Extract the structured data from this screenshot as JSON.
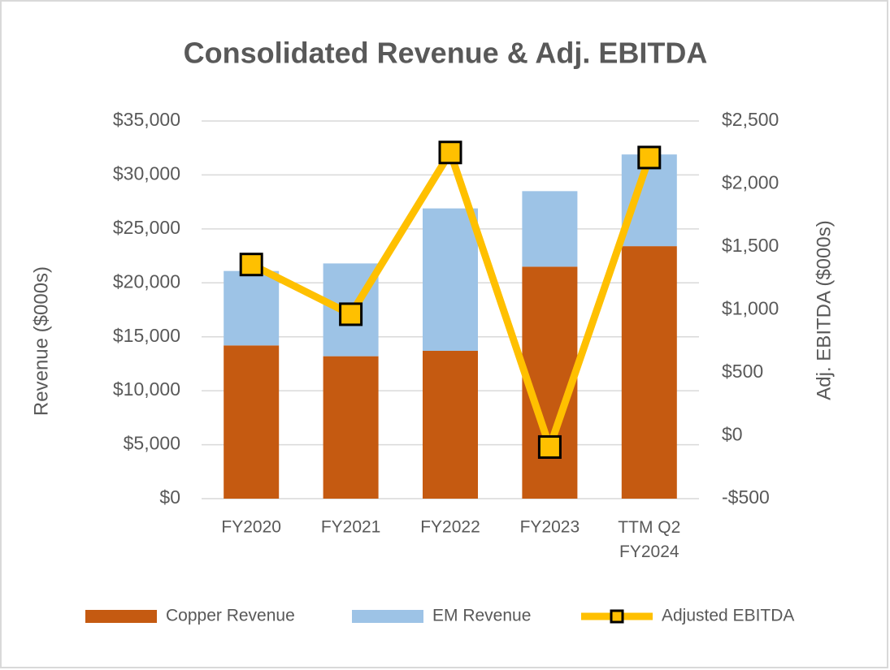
{
  "chart_data": {
    "type": "bar",
    "title": "Consolidated Revenue & Adj. EBITDA",
    "y_label": "Revenue ($000s)",
    "y2_label": "Adj. EBITDA ($000s)",
    "categories": [
      "FY2020",
      "FY2021",
      "FY2022",
      "FY2023",
      "TTM Q2 FY2024"
    ],
    "stacked": true,
    "series": [
      {
        "name": "Copper Revenue",
        "color": "#c55a11",
        "type": "bar",
        "values": [
          14200,
          13200,
          13700,
          21500,
          23400
        ]
      },
      {
        "name": "EM Revenue",
        "color": "#9dc3e6",
        "type": "bar",
        "values": [
          6900,
          8600,
          13200,
          7000,
          8500
        ]
      },
      {
        "name": "Adjusted EBITDA",
        "color": "#ffc000",
        "type": "line",
        "axis": "y2",
        "values": [
          1360,
          965,
          2250,
          -90,
          2210
        ]
      }
    ],
    "ylim": [
      0,
      35000
    ],
    "yticks": [
      {
        "value": 0,
        "label": "$0"
      },
      {
        "value": 5000,
        "label": "$5,000"
      },
      {
        "value": 10000,
        "label": "$10,000"
      },
      {
        "value": 15000,
        "label": "$15,000"
      },
      {
        "value": 20000,
        "label": "$20,000"
      },
      {
        "value": 25000,
        "label": "$25,000"
      },
      {
        "value": 30000,
        "label": "$30,000"
      },
      {
        "value": 35000,
        "label": "$35,000"
      }
    ],
    "y2lim": [
      -500,
      2500
    ],
    "y2ticks": [
      {
        "value": -500,
        "label": "-$500"
      },
      {
        "value": 0,
        "label": "$0"
      },
      {
        "value": 500,
        "label": "$500"
      },
      {
        "value": 1000,
        "label": "$1,000"
      },
      {
        "value": 1500,
        "label": "$1,500"
      },
      {
        "value": 2000,
        "label": "$2,000"
      },
      {
        "value": 2500,
        "label": "$2,500"
      }
    ],
    "grid": true,
    "legend": "bottom"
  }
}
